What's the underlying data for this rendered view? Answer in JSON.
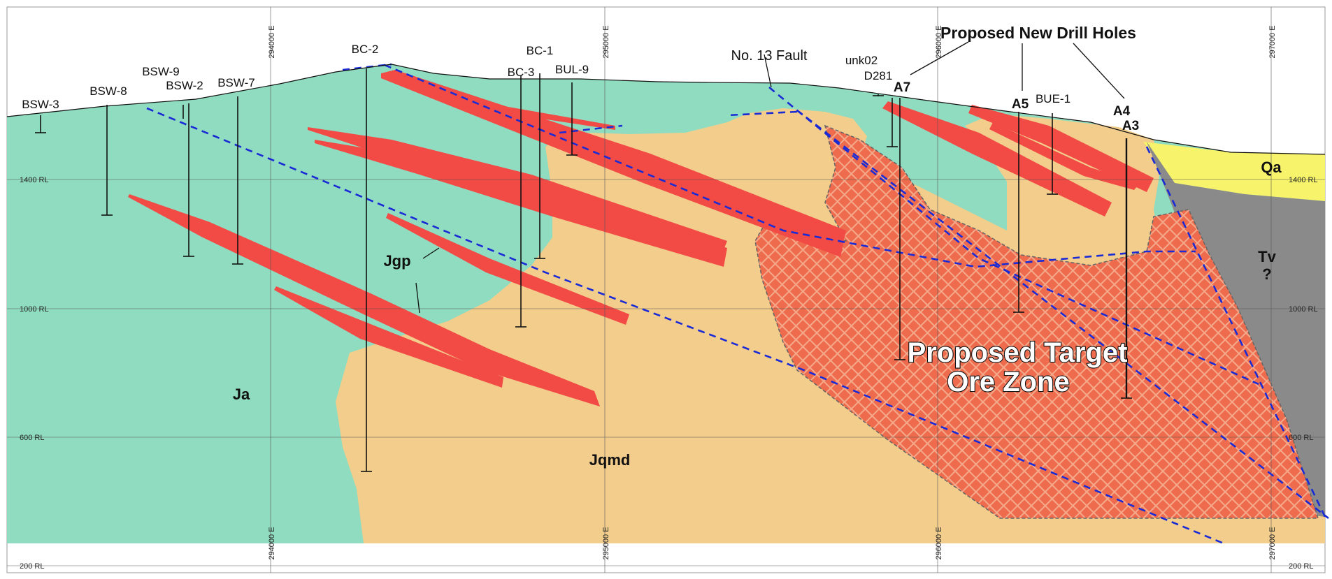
{
  "colors": {
    "ja": "#8fdcc0",
    "jqmd": "#f2cd8c",
    "tv": "#8a8a8a",
    "qa": "#f7f36a",
    "ore_vein": "#f24a45",
    "target_zone": "#ee6c4d",
    "fault": "#1a2bd6"
  },
  "units": {
    "ja": "Ja",
    "jqmd": "Jqmd",
    "jgp": "Jgp",
    "qa": "Qa",
    "tv": "Tv",
    "tv_query": "?"
  },
  "titles": {
    "new_holes": "Proposed New Drill Holes",
    "fault": "No. 13 Fault",
    "target_line1": "Proposed Target",
    "target_line2": "Ore Zone"
  },
  "drill_holes": {
    "bsw3": "BSW-3",
    "bsw8": "BSW-8",
    "bsw9": "BSW-9",
    "bsw2": "BSW-2",
    "bsw7": "BSW-7",
    "bc2": "BC-2",
    "bc1": "BC-1",
    "bc3": "BC-3",
    "bul9": "BUL-9",
    "unk02": "unk02",
    "d281": "D281",
    "a7": "A7",
    "a5": "A5",
    "bue1": "BUE-1",
    "a4": "A4",
    "a3": "A3"
  },
  "eastings": [
    "294000 E",
    "295000 E",
    "296000 E",
    "297000 E"
  ],
  "elevations": [
    "1400 RL",
    "1000 RL",
    "600 RL",
    "200 RL"
  ]
}
